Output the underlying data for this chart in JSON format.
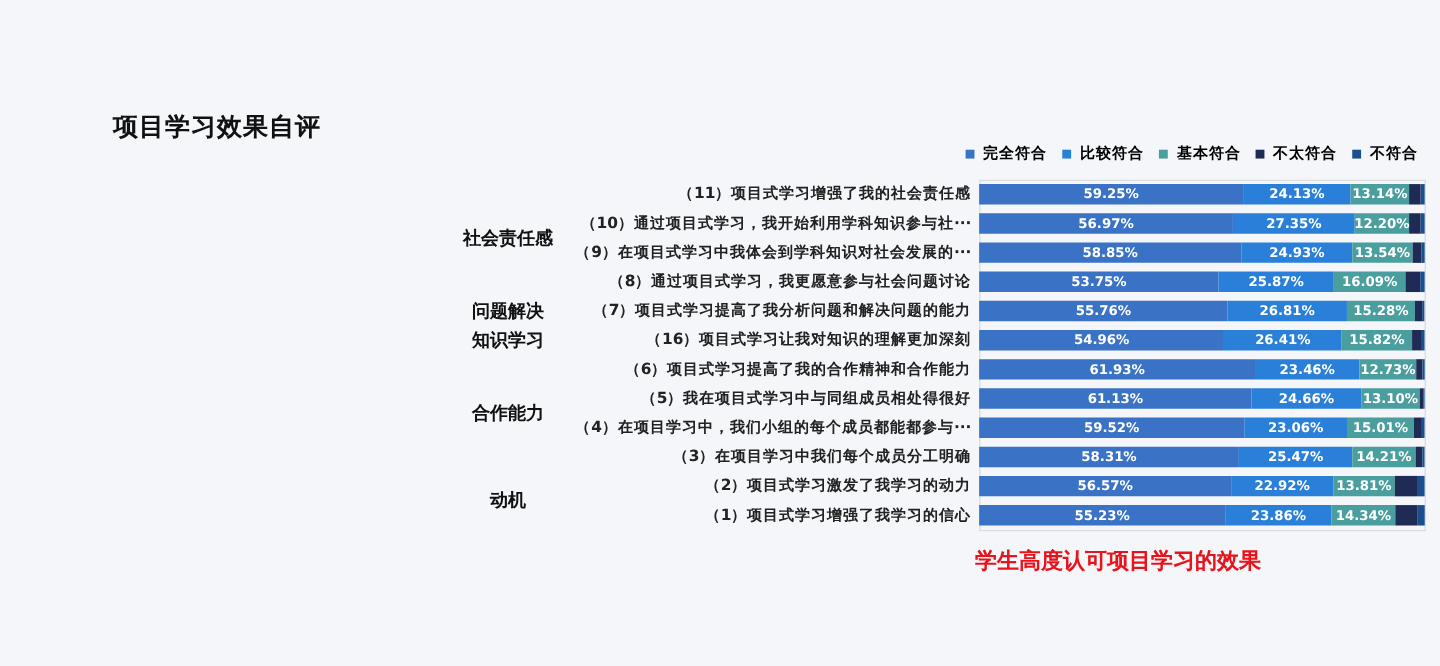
{
  "chart_data": {
    "type": "bar",
    "orientation": "horizontal",
    "stacked": true,
    "title": "项目学习效果自评",
    "categories": [
      "（11）项目式学习增强了我的社会责任感",
      "（10）通过项目式学习，我开始利用学科知识参与社···",
      "（9）在项目式学习中我体会到学科知识对社会发展的···",
      "（8）通过项目式学习，我更愿意参与社会问题讨论",
      "（7）项目式学习提高了我分析问题和解决问题的能力",
      "（16）项目式学习让我对知识的理解更加深刻",
      "（6）项目式学习提高了我的合作精神和合作能力",
      "（5）我在项目式学习中与同组成员相处得很好",
      "（4）在项目学习中，我们小组的每个成员都能都参与···",
      "（3）在项目学习中我们每个成员分工明确",
      "（2）项目式学习激发了我学习的动力",
      "（1）项目式学习增强了我学习的信心"
    ],
    "series": [
      {
        "name": "完全符合",
        "color": "#3a72c6",
        "values": [
          59.25,
          56.97,
          58.85,
          53.75,
          55.76,
          54.96,
          61.93,
          61.13,
          59.52,
          58.31,
          56.57,
          55.23
        ],
        "value_labels": [
          "59.25%",
          "56.97%",
          "58.85%",
          "53.75%",
          "55.76%",
          "54.96%",
          "61.93%",
          "61.13%",
          "59.52%",
          "58.31%",
          "56.57%",
          "55.23%"
        ]
      },
      {
        "name": "比较符合",
        "color": "#2a80d8",
        "values": [
          24.13,
          27.35,
          24.93,
          25.87,
          26.81,
          26.41,
          23.46,
          24.66,
          23.06,
          25.47,
          22.92,
          23.86
        ],
        "value_labels": [
          "24.13%",
          "27.35%",
          "24.93%",
          "25.87%",
          "26.81%",
          "26.41%",
          "23.46%",
          "24.66%",
          "23.06%",
          "25.47%",
          "22.92%",
          "23.86%"
        ]
      },
      {
        "name": "基本符合",
        "color": "#4a9e9e",
        "values": [
          13.14,
          12.2,
          13.54,
          16.09,
          15.28,
          15.82,
          12.73,
          13.1,
          15.01,
          14.21,
          13.81,
          14.34
        ],
        "value_labels": [
          "13.14%",
          "12.20%",
          "13.54%",
          "16.09%",
          "15.28%",
          "15.82%",
          "12.73%",
          "13.10%",
          "15.01%",
          "14.21%",
          "13.81%",
          "14.34%"
        ]
      },
      {
        "name": "不太符合",
        "color": "#1f2a55",
        "values": [
          2.6,
          2.6,
          2.0,
          3.3,
          1.6,
          2.2,
          1.4,
          0.8,
          1.8,
          1.5,
          5.0,
          4.9
        ]
      },
      {
        "name": "不符合",
        "color": "#1b4e8c",
        "values": [
          0.9,
          0.9,
          0.7,
          1.0,
          0.5,
          0.6,
          0.5,
          0.3,
          0.6,
          0.5,
          1.7,
          1.7
        ]
      }
    ],
    "xlim": [
      0,
      100
    ],
    "tick_labels": "y",
    "legend": "top right",
    "annotations": [
      "社会责任感",
      "问题解决",
      "知识学习",
      "合作能力",
      "动机",
      "学生高度认可项目学习的效果"
    ]
  }
}
